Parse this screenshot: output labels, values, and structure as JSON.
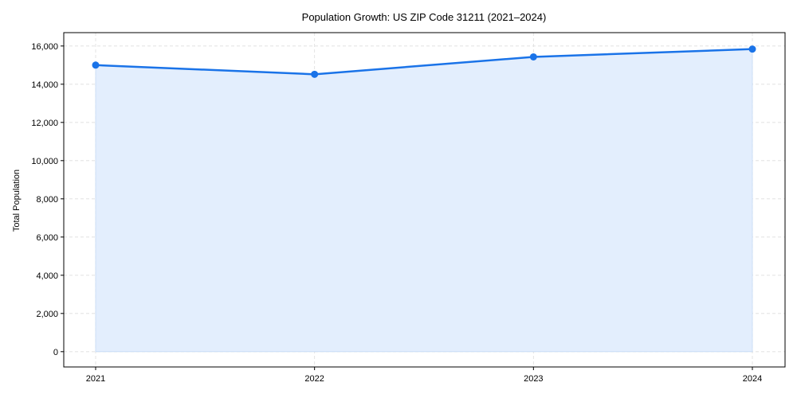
{
  "chart_data": {
    "type": "area",
    "title": "Population Growth: US ZIP Code 31211 (2021–2024)",
    "xlabel": "",
    "ylabel": "Total Population",
    "categories": [
      "2021",
      "2022",
      "2023",
      "2024"
    ],
    "values": [
      15000,
      14520,
      15430,
      15840
    ],
    "ylim": [
      -800,
      16700
    ],
    "yticks": [
      0,
      2000,
      4000,
      6000,
      8000,
      10000,
      12000,
      14000,
      16000
    ],
    "ytick_labels": [
      "0",
      "2,000",
      "4,000",
      "6,000",
      "8,000",
      "10,000",
      "12,000",
      "14,000",
      "16,000"
    ],
    "grid": true,
    "line_color": "#1a73e8",
    "fill_color": "#e3eefd"
  }
}
